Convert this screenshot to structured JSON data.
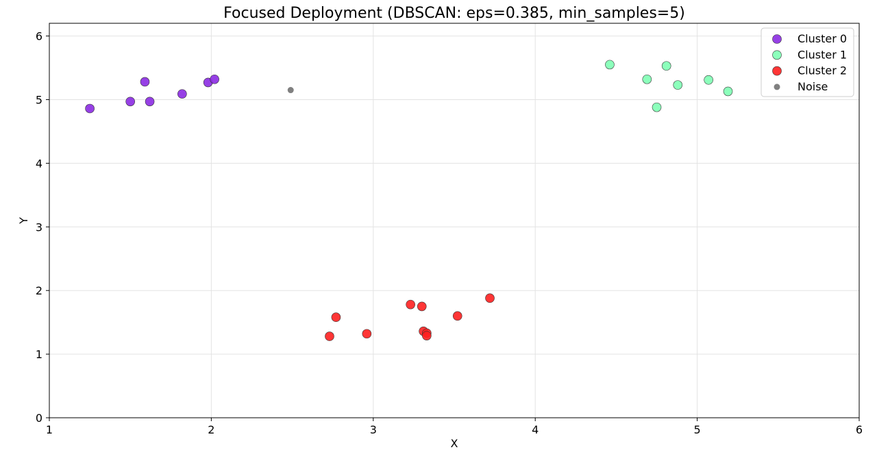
{
  "chart_data": {
    "type": "scatter",
    "title": "Focused Deployment (DBSCAN: eps=0.385, min_samples=5)",
    "xlabel": "X",
    "ylabel": "Y",
    "xlim": [
      1,
      6
    ],
    "ylim": [
      0,
      6.2
    ],
    "xticks": [
      1,
      2,
      3,
      4,
      5,
      6
    ],
    "yticks": [
      0,
      1,
      2,
      3,
      4,
      5,
      6
    ],
    "grid": true,
    "legend_position": "top-right",
    "series": [
      {
        "name": "Cluster 0",
        "color": "#8b2be2",
        "points": [
          [
            1.25,
            4.86
          ],
          [
            1.5,
            4.97
          ],
          [
            1.59,
            5.28
          ],
          [
            1.62,
            4.97
          ],
          [
            1.82,
            5.09
          ],
          [
            1.98,
            5.27
          ],
          [
            2.02,
            5.32
          ]
        ]
      },
      {
        "name": "Cluster 1",
        "color": "#80ffb4",
        "points": [
          [
            4.46,
            5.55
          ],
          [
            4.69,
            5.32
          ],
          [
            4.75,
            4.88
          ],
          [
            4.81,
            5.53
          ],
          [
            4.88,
            5.23
          ],
          [
            5.07,
            5.31
          ],
          [
            5.19,
            5.13
          ]
        ]
      },
      {
        "name": "Cluster 2",
        "color": "#ff2020",
        "points": [
          [
            2.73,
            1.28
          ],
          [
            2.77,
            1.58
          ],
          [
            2.96,
            1.32
          ],
          [
            3.23,
            1.78
          ],
          [
            3.3,
            1.75
          ],
          [
            3.31,
            1.36
          ],
          [
            3.33,
            1.33
          ],
          [
            3.33,
            1.29
          ],
          [
            3.52,
            1.6
          ],
          [
            3.72,
            1.88
          ]
        ]
      },
      {
        "name": "Noise",
        "color": "#808080",
        "points": [
          [
            2.49,
            5.15
          ]
        ]
      }
    ]
  }
}
